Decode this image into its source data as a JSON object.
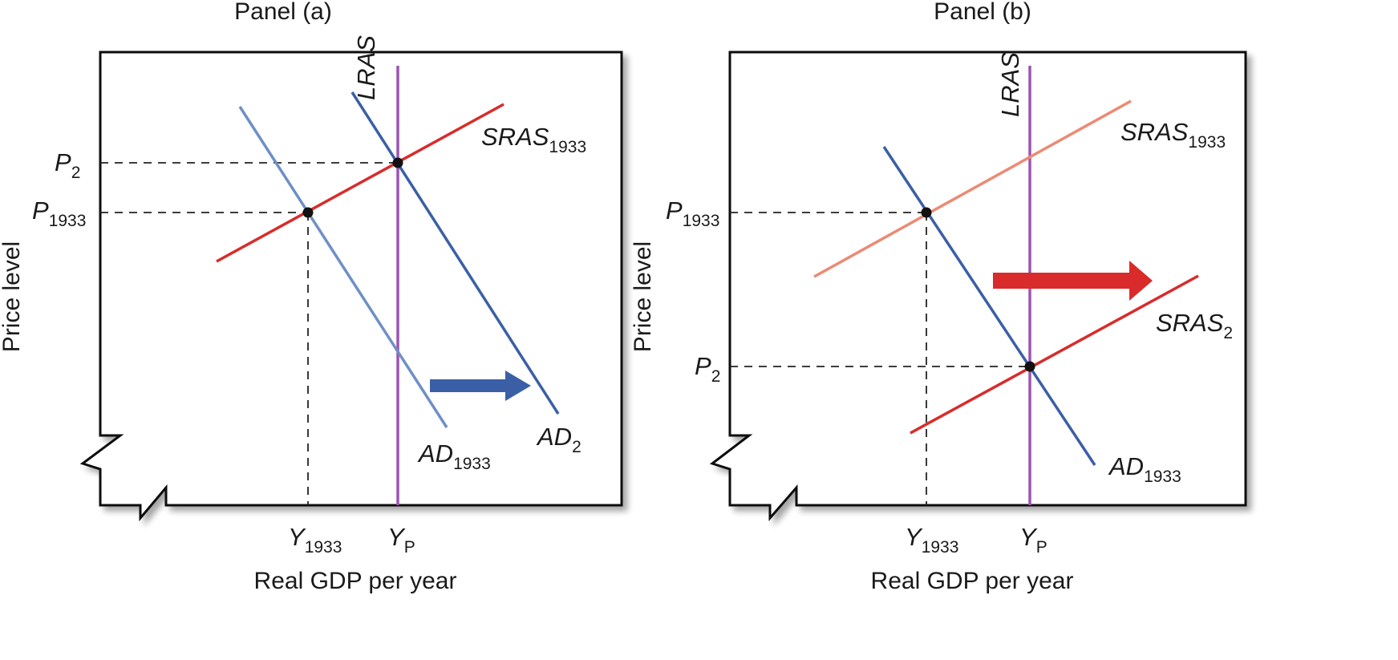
{
  "colors": {
    "ad_old": "#6f8fc6",
    "ad_new": "#3b5fa6",
    "sras_old_b": "#ec8a74",
    "sras": "#d92b2b",
    "lras": "#9b55b0",
    "arrow_a": "#3b5fa6",
    "arrow_b": "#d92b2b",
    "frame": "#111111"
  },
  "panel_a": {
    "title": "Panel (a)",
    "x_axis_title": "Real GDP per year",
    "y_axis_title": "Price level",
    "lras": "LRAS",
    "sras_1933": {
      "main": "SRAS",
      "sub": "1933"
    },
    "ad_1933": {
      "main": "AD",
      "sub": "1933"
    },
    "ad_2": {
      "main": "AD",
      "sub": "2"
    },
    "p_2": {
      "main": "P",
      "sub": "2"
    },
    "p_1933": {
      "main": "P",
      "sub": "1933"
    },
    "y_1933": {
      "main": "Y",
      "sub": "1933"
    },
    "y_p": {
      "main": "Y",
      "sub": "P"
    },
    "shift_arrow": "right-icon"
  },
  "panel_b": {
    "title": "Panel (b)",
    "x_axis_title": "Real GDP per year",
    "y_axis_title": "Price level",
    "lras": "LRAS",
    "sras_1933": {
      "main": "SRAS",
      "sub": "1933"
    },
    "sras_2": {
      "main": "SRAS",
      "sub": "2"
    },
    "ad_1933": {
      "main": "AD",
      "sub": "1933"
    },
    "p_1933": {
      "main": "P",
      "sub": "1933"
    },
    "p_2": {
      "main": "P",
      "sub": "2"
    },
    "y_1933": {
      "main": "Y",
      "sub": "1933"
    },
    "y_p": {
      "main": "Y",
      "sub": "P"
    },
    "shift_arrow": "right-icon"
  }
}
